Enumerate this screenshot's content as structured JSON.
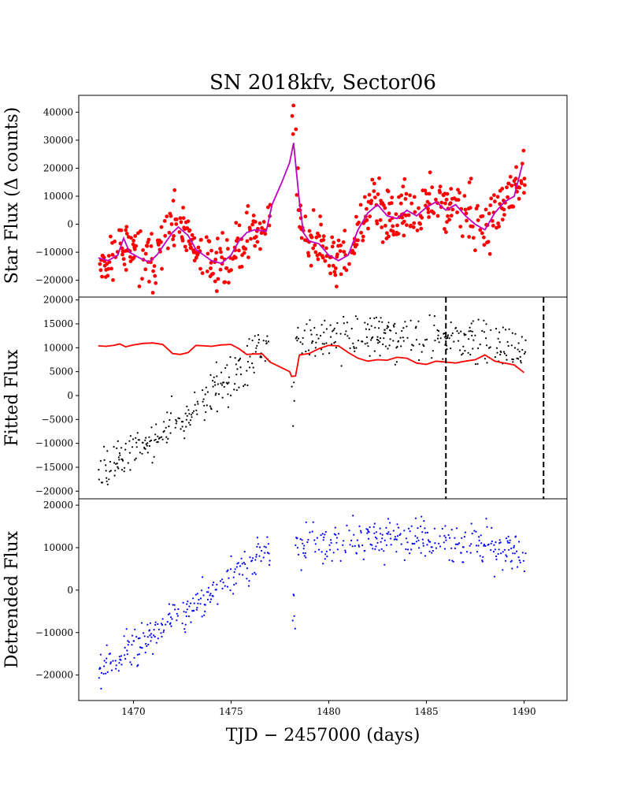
{
  "figure_title": "SN 2018kfv, Sector06",
  "chart_data": [
    {
      "type": "scatter",
      "panel": "top",
      "ylabel": "Star Flux (Δ counts)",
      "xlim": [
        1467.2,
        1492.2
      ],
      "ylim": [
        -26000,
        46000
      ],
      "yticks": [
        -20000,
        -10000,
        0,
        10000,
        20000,
        30000,
        40000
      ],
      "ytick_labels": [
        "−20000",
        "−10000",
        "0",
        "10000",
        "20000",
        "30000",
        "40000"
      ],
      "series": [
        {
          "name": "star flux",
          "kind": "points",
          "color": "#ff0000",
          "radius": 2.4,
          "generator": "top",
          "summary": {
            "x_range": [
              1468.2,
              1490.1
            ],
            "gap": [
              1477.0,
              1478.1
            ],
            "spike_peak": 42800,
            "spike_x": 1478.3
          }
        },
        {
          "name": "binned flux",
          "kind": "line",
          "color": "#bf00bf",
          "x": [
            1468.2,
            1468.7,
            1469.2,
            1469.5,
            1469.8,
            1470.3,
            1470.8,
            1471.2,
            1471.6,
            1472.0,
            1472.3,
            1472.8,
            1473.2,
            1473.6,
            1474.0,
            1474.5,
            1475.0,
            1475.4,
            1475.8,
            1476.2,
            1476.8,
            1477.1,
            1477.6,
            1478.0,
            1478.2,
            1478.5,
            1478.7,
            1479.0,
            1479.5,
            1480.0,
            1480.5,
            1481.0,
            1481.5,
            1482.0,
            1482.5,
            1483.0,
            1483.5,
            1484.0,
            1484.5,
            1485.0,
            1485.5,
            1486.0,
            1486.5,
            1487.0,
            1487.5,
            1488.0,
            1488.5,
            1489.0,
            1489.5,
            1489.9
          ],
          "y": [
            -12000,
            -13000,
            -11000,
            -5000,
            -10000,
            -12000,
            -13500,
            -11000,
            -7000,
            -3000,
            -1000,
            -4000,
            -9000,
            -11000,
            -13000,
            -14000,
            -11000,
            -6000,
            -3000,
            -2000,
            -2500,
            7000,
            15000,
            22000,
            29000,
            8000,
            -3000,
            -6000,
            -7000,
            -11000,
            -13000,
            -11000,
            -2000,
            4000,
            7000,
            3000,
            2000,
            5000,
            3000,
            6000,
            8000,
            5000,
            7000,
            3000,
            0,
            -2000,
            4000,
            8000,
            10000,
            21000
          ]
        }
      ]
    },
    {
      "type": "scatter",
      "panel": "middle",
      "ylabel": "Fitted Flux",
      "xlim": [
        1467.2,
        1492.2
      ],
      "ylim": [
        -21600,
        20600
      ],
      "yticks": [
        -20000,
        -15000,
        -10000,
        -5000,
        0,
        5000,
        10000,
        15000,
        20000
      ],
      "ytick_labels": [
        "−20000",
        "−15000",
        "−10000",
        "−5000",
        "0",
        "5000",
        "10000",
        "15000",
        "20000"
      ],
      "vlines": [
        1486.0,
        1491.0
      ],
      "series": [
        {
          "name": "fitted flux",
          "kind": "points",
          "color": "#000000",
          "radius": 1.1,
          "generator": "ramp",
          "summary": {
            "start": -16500,
            "end_pre_gap": 10500,
            "post_gap_mean": 11000
          }
        },
        {
          "name": "model",
          "kind": "line",
          "color": "#ff0000",
          "x": [
            1468.2,
            1468.6,
            1469.0,
            1469.3,
            1469.6,
            1470.0,
            1470.5,
            1471.0,
            1471.5,
            1471.9,
            1472.0,
            1472.4,
            1472.8,
            1473.2,
            1473.6,
            1474.0,
            1474.5,
            1475.0,
            1475.4,
            1475.8,
            1476.2,
            1476.6,
            1477.0,
            1477.5,
            1478.0,
            1478.1,
            1478.3,
            1478.5,
            1479.0,
            1479.5,
            1480.0,
            1480.5,
            1481.0,
            1481.5,
            1482.0,
            1482.5,
            1483.0,
            1483.5,
            1484.0,
            1484.5,
            1485.0,
            1485.5,
            1486.0,
            1486.5,
            1487.0,
            1487.5,
            1488.0,
            1488.5,
            1489.0,
            1489.5,
            1490.0
          ],
          "y": [
            10400,
            10300,
            10500,
            10800,
            10200,
            10600,
            10900,
            11000,
            10700,
            9200,
            8800,
            8600,
            9000,
            10500,
            10400,
            10300,
            10600,
            10700,
            9800,
            8600,
            8700,
            8700,
            7000,
            6000,
            5000,
            4000,
            4100,
            8500,
            8800,
            9800,
            10500,
            10400,
            9000,
            7800,
            7200,
            7500,
            7400,
            8000,
            7800,
            6800,
            6500,
            7200,
            7000,
            6800,
            7200,
            7500,
            8500,
            7200,
            6800,
            6400,
            4800
          ]
        }
      ]
    },
    {
      "type": "scatter",
      "panel": "bottom",
      "ylabel": "Detrended Flux",
      "xlabel": "TJD − 2457000 (days)",
      "xlim": [
        1467.2,
        1492.2
      ],
      "ylim": [
        -26000,
        21500
      ],
      "xticks": [
        1470,
        1475,
        1480,
        1485,
        1490
      ],
      "xtick_labels": [
        "1470",
        "1475",
        "1480",
        "1485",
        "1490"
      ],
      "yticks": [
        -20000,
        -10000,
        0,
        10000,
        20000
      ],
      "ytick_labels": [
        "−20000",
        "−10000",
        "0",
        "10000",
        "20000"
      ],
      "series": [
        {
          "name": "detrended flux",
          "kind": "points",
          "color": "#0000ff",
          "radius": 1.1,
          "generator": "ramp",
          "summary": {
            "start": -18500,
            "end_pre_gap": 10000,
            "post_gap_mean": 10500
          }
        }
      ]
    }
  ]
}
